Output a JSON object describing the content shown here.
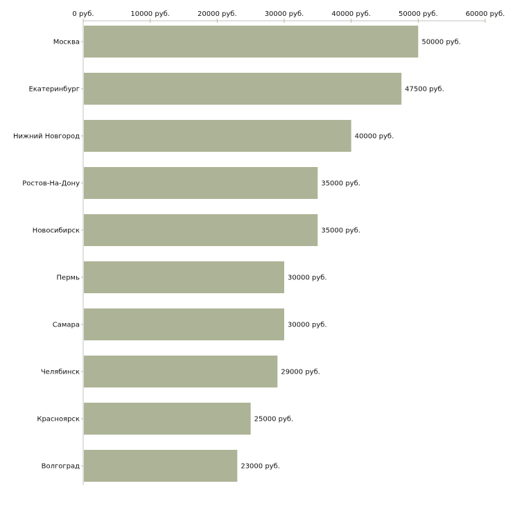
{
  "chart_data": {
    "type": "bar",
    "orientation": "horizontal",
    "categories": [
      "Москва",
      "Екатеринбург",
      "Нижний Новгород",
      "Ростов-На-Дону",
      "Новосибирск",
      "Пермь",
      "Самара",
      "Челябинск",
      "Красноярск",
      "Волгоград"
    ],
    "values": [
      50000,
      47500,
      40000,
      35000,
      35000,
      30000,
      30000,
      29000,
      25000,
      23000
    ],
    "value_labels": [
      "50000 руб.",
      "47500 руб.",
      "40000 руб.",
      "35000 руб.",
      "35000 руб.",
      "30000 руб.",
      "30000 руб.",
      "29000 руб.",
      "25000 руб.",
      "23000 руб."
    ],
    "xticks": [
      0,
      10000,
      20000,
      30000,
      40000,
      50000,
      60000
    ],
    "xtick_labels": [
      "0 руб.",
      "10000 руб.",
      "20000 руб.",
      "30000 руб.",
      "40000 руб.",
      "50000 руб.",
      "60000 руб."
    ],
    "xlim": [
      0,
      60000
    ],
    "axis_position": "top",
    "title": "",
    "xlabel": "",
    "ylabel": "",
    "bar_color": "#adb396",
    "axis_color": "#c0c0c0",
    "tick_color": "#b5ba98"
  }
}
